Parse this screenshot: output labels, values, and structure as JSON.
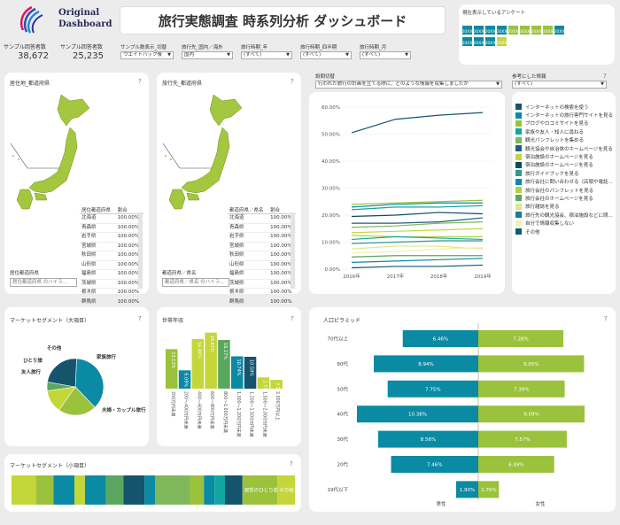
{
  "logo": {
    "line1": "Original",
    "line2": "Dashboard"
  },
  "header": {
    "title": "旅行実態調査 時系列分析 ダッシュボード"
  },
  "current_surveys": {
    "label": "現在表示しているアンケート",
    "badges": [
      {
        "label": "20XX",
        "color": "#0b8aa3"
      },
      {
        "label": "20XX",
        "color": "#0b8aa3"
      },
      {
        "label": "20XX",
        "color": "#0b8aa3"
      },
      {
        "label": "20XX",
        "color": "#0b8aa3"
      },
      {
        "label": "20XX",
        "color": "#9bc23c"
      },
      {
        "label": "20XX",
        "color": "#9bc23c"
      },
      {
        "label": "20XX",
        "color": "#9bc23c"
      },
      {
        "label": "20XX",
        "color": "#9bc23c"
      },
      {
        "label": "20XX",
        "color": "#0b8aa3"
      },
      {
        "label": "20XX",
        "color": "#0b8aa3"
      },
      {
        "label": "20XX",
        "color": "#0b8aa3"
      },
      {
        "label": "20XX",
        "color": "#0b8aa3"
      },
      {
        "label": "20XX",
        "color": "#c4d63a"
      }
    ]
  },
  "stats": {
    "sample_respondents_label": "サンプル回答者数",
    "sample_respondents_value": "38,672",
    "sample_answers_label": "サンプル回答者数",
    "sample_answers_value": "25,235"
  },
  "filters": [
    {
      "label": "サンプル数表示_切替",
      "value": "ウエイトバック後"
    },
    {
      "label": "旅行先_国内／海外",
      "value": "国内"
    },
    {
      "label": "旅行時期_年",
      "value": "(すべて)"
    },
    {
      "label": "旅行時期_四半期",
      "value": "(すべて)"
    },
    {
      "label": "旅行時期_月",
      "value": "(すべて)"
    }
  ],
  "residence_panel": {
    "title": "居住地_都道府県",
    "table_headers": [
      "居住都道府県",
      "割合"
    ],
    "rows": [
      [
        "北海道",
        "100.00%"
      ],
      [
        "青森県",
        "100.00%"
      ],
      [
        "岩手県",
        "100.00%"
      ],
      [
        "宮城県",
        "100.00%"
      ],
      [
        "秋田県",
        "100.00%"
      ],
      [
        "山形県",
        "100.00%"
      ],
      [
        "福島県",
        "100.00%"
      ],
      [
        "茨城県",
        "100.00%"
      ],
      [
        "栃木県",
        "100.00%"
      ],
      [
        "群馬県",
        "100.00%"
      ]
    ],
    "search_label": "居住都道府県",
    "search_placeholder": "居住都道府県 のハイラ..."
  },
  "destination_panel": {
    "title": "旅行先_都道府県",
    "table_headers": [
      "都道府県／県名",
      "割合"
    ],
    "rows": [
      [
        "北海道",
        "100.00%"
      ],
      [
        "青森県",
        "100.00%"
      ],
      [
        "岩手県",
        "100.00%"
      ],
      [
        "宮城県",
        "100.00%"
      ],
      [
        "秋田県",
        "100.00%"
      ],
      [
        "山形県",
        "100.00%"
      ],
      [
        "福島県",
        "100.00%"
      ],
      [
        "茨城県",
        "100.00%"
      ],
      [
        "栃木県",
        "100.00%"
      ],
      [
        "群馬県",
        "100.00%"
      ]
    ],
    "search_label": "都道府県／県名",
    "search_placeholder": "都道府県／県名 のハイラ..."
  },
  "question_filter": {
    "label": "設問切替",
    "value": "行われた旅行の計画を立てる際に、どのような情報を収集しましたか"
  },
  "reference_filter": {
    "label": "参考にした情報",
    "value": "(すべて)"
  },
  "line_chart": {
    "y_ticks": [
      "60.00%",
      "50.00%",
      "40.00%",
      "30.00%",
      "20.00%",
      "10.00%",
      "0.00%"
    ],
    "x_ticks": [
      "2016年",
      "2017年",
      "2018年",
      "2019年"
    ]
  },
  "legend": [
    {
      "label": "インターネットの検索を使う",
      "color": "#15546d"
    },
    {
      "label": "インターネットの旅行専門サイトを見る",
      "color": "#0b8aa3"
    },
    {
      "label": "ブログやロコミサイトを見る",
      "color": "#9bc23c"
    },
    {
      "label": "家族や友人・知人に尋ねる",
      "color": "#13a6a0"
    },
    {
      "label": "観光パンフレットを集める",
      "color": "#7fb85a"
    },
    {
      "label": "観光協会や自治体のホームページを見る",
      "color": "#1b5f78"
    },
    {
      "label": "宿泊施設のホームページを見る",
      "color": "#c4d63a"
    },
    {
      "label": "宿泊施設のホームページを見る",
      "color": "#0d4a61"
    },
    {
      "label": "旅行ガイドブックを見る",
      "color": "#2e9a8c"
    },
    {
      "label": "旅行会社に問い合わせる（店頭や電話...",
      "color": "#0b8aa3"
    },
    {
      "label": "旅行会社のパンフレットを見る",
      "color": "#b5d045"
    },
    {
      "label": "旅行会社のホームページを見る",
      "color": "#5aa75f"
    },
    {
      "label": "旅行雑誌を見る",
      "color": "#dde98a"
    },
    {
      "label": "旅行先の観光協会、宿泊施設などに問...",
      "color": "#1a7e96"
    },
    {
      "label": "自分で情報収集しない",
      "color": "#eef3b0"
    },
    {
      "label": "その他",
      "color": "#10597a"
    }
  ],
  "chart_data": [
    {
      "type": "line",
      "x": [
        "2016年",
        "2017年",
        "2018年",
        "2019年"
      ],
      "ylim": [
        0,
        60
      ],
      "series": [
        {
          "values": [
            50.5,
            55.5,
            57,
            58
          ],
          "color": "#15546d"
        },
        {
          "values": [
            24,
            24.5,
            25,
            25.5
          ],
          "color": "#9bc23c"
        },
        {
          "values": [
            23,
            24,
            24.5,
            24.5
          ],
          "color": "#0b8aa3"
        },
        {
          "values": [
            22,
            23,
            23,
            23.5
          ],
          "color": "#13a6a0"
        },
        {
          "values": [
            19.5,
            20,
            21,
            20.5
          ],
          "color": "#0d4a61"
        },
        {
          "values": [
            17,
            17,
            17.5,
            19
          ],
          "color": "#1b5f78"
        },
        {
          "values": [
            15.5,
            16,
            17,
            17.5
          ],
          "color": "#7fb85a"
        },
        {
          "values": [
            13.5,
            14,
            14.5,
            15
          ],
          "color": "#c4d63a"
        },
        {
          "values": [
            12.5,
            12,
            12,
            12
          ],
          "color": "#b5d045"
        },
        {
          "values": [
            11,
            12,
            11.5,
            11
          ],
          "color": "#13a6a0"
        },
        {
          "values": [
            9.5,
            10,
            10.5,
            10.5
          ],
          "color": "#2e9a8c"
        },
        {
          "values": [
            7.5,
            8.5,
            8.5,
            7.5
          ],
          "color": "#dde98a"
        },
        {
          "values": [
            6,
            6.5,
            7.5,
            8
          ],
          "color": "#eef3b0"
        },
        {
          "values": [
            4.5,
            5,
            5,
            5
          ],
          "color": "#5aa75f"
        },
        {
          "values": [
            2.5,
            3,
            3.5,
            4
          ],
          "color": "#0b8aa3"
        },
        {
          "values": [
            0.5,
            1,
            1,
            1.5
          ],
          "color": "#15546d"
        }
      ]
    },
    {
      "type": "pie",
      "title": "マーケットセグメント（大項目）",
      "slices": [
        {
          "label": "夫婦・カップル旅行",
          "value": 37,
          "color": "#0b8aa3"
        },
        {
          "label": "友人旅行",
          "value": 22,
          "color": "#9bc23c"
        },
        {
          "label": "ひとり旅",
          "value": 13,
          "color": "#c4d63a"
        },
        {
          "label": "その他",
          "value": 5,
          "color": "#5aa75f"
        },
        {
          "label": "家族旅行",
          "value": 23,
          "color": "#15546d"
        }
      ]
    },
    {
      "type": "bar",
      "title": "世帯年収",
      "categories": [
        "200万円未満",
        "200〜400万円未満",
        "400〜600万円未満",
        "600〜800万円未満",
        "800〜1,000万円未満",
        "1,000〜1,200万円未満",
        "1,200〜1,500万円未満",
        "1,500〜2,000万円未満",
        "2,000万円以上"
      ],
      "values": [
        13.13,
        6.09,
        16.49,
        18.61,
        16.17,
        10.74,
        10.59,
        3.74,
        2.92
      ],
      "colors": [
        "#9bc23c",
        "#0b8aa3",
        "#c4d63a",
        "#c4d63a",
        "#5aa75f",
        "#0b8aa3",
        "#15546d",
        "#c4d63a",
        "#c4d63a"
      ],
      "labels": [
        "13.13%",
        "6.09%",
        "16.49%",
        "18.61%",
        "16.17%",
        "10.74%",
        "10.59%",
        "3.74%",
        "2.92%"
      ],
      "ylim": [
        0,
        20
      ]
    },
    {
      "type": "bar",
      "title": "人口ピラミッド",
      "categories": [
        "70代以上",
        "60代",
        "50代",
        "40代",
        "30代",
        "20代",
        "19代以下"
      ],
      "series": [
        {
          "name": "男性",
          "values": [
            6.46,
            8.94,
            7.75,
            10.38,
            8.56,
            7.46,
            1.9
          ],
          "labels": [
            "6.46%",
            "8.94%",
            "7.75%",
            "10.38%",
            "8.56%",
            "7.46%",
            "1.90%"
          ],
          "color": "#0b8aa3"
        },
        {
          "name": "女性",
          "values": [
            7.28,
            9.05,
            7.39,
            9.09,
            7.57,
            6.49,
            1.76
          ],
          "labels": [
            "7.28%",
            "9.05%",
            "7.39%",
            "9.09%",
            "7.57%",
            "6.49%",
            "1.76%"
          ],
          "color": "#9bc23c"
        }
      ],
      "xlim": [
        0,
        11
      ]
    },
    {
      "type": "bar",
      "title": "マーケットセグメント（小項目）",
      "segments": [
        {
          "value": 7,
          "color": "#c4d63a",
          "label": ""
        },
        {
          "value": 5,
          "color": "#9bc23c",
          "label": ""
        },
        {
          "value": 6,
          "color": "#0b8aa3",
          "label": ""
        },
        {
          "value": 3,
          "color": "#c4d63a",
          "label": ""
        },
        {
          "value": 6,
          "color": "#0b8aa3",
          "label": ""
        },
        {
          "value": 5,
          "color": "#5aa75f",
          "label": ""
        },
        {
          "value": 6,
          "color": "#15546d",
          "label": ""
        },
        {
          "value": 3,
          "color": "#0b8aa3",
          "label": ""
        },
        {
          "value": 10,
          "color": "#7fb85a",
          "label": ""
        },
        {
          "value": 4,
          "color": "#9bc23c",
          "label": ""
        },
        {
          "value": 3,
          "color": "#0b8aa3",
          "label": ""
        },
        {
          "value": 3,
          "color": "#13a6a0",
          "label": ""
        },
        {
          "value": 5,
          "color": "#15546d",
          "label": ""
        },
        {
          "value": 10,
          "color": "#9bc23c",
          "label": "男性のひとり旅"
        },
        {
          "value": 5,
          "color": "#c4d63a",
          "label": "その他"
        }
      ]
    }
  ],
  "help_icon": "?"
}
